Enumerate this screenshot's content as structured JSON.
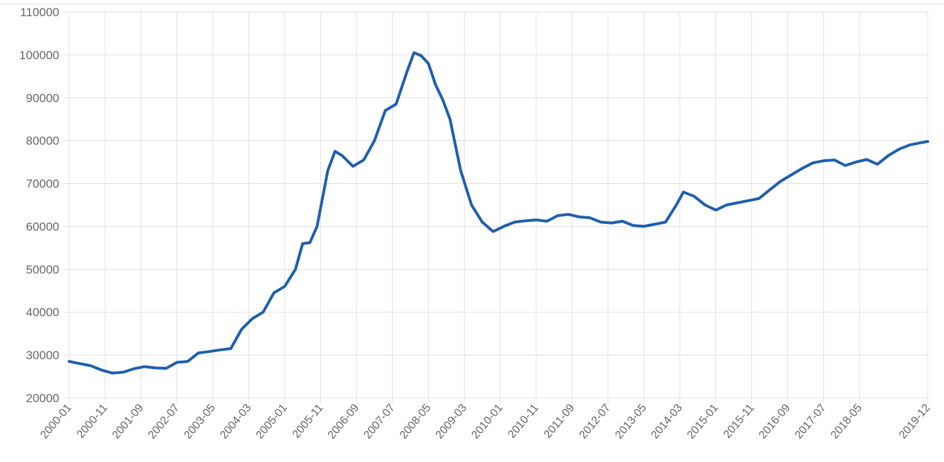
{
  "chart_data": {
    "type": "line",
    "title": "",
    "xlabel": "",
    "ylabel": "",
    "ylim": [
      20000,
      110000
    ],
    "yticks": [
      "20000",
      "30000",
      "40000",
      "50000",
      "60000",
      "70000",
      "80000",
      "90000",
      "100000",
      "110000"
    ],
    "xticks": [
      "2000-01",
      "2000-11",
      "2001-09",
      "2002-07",
      "2003-05",
      "2004-03",
      "2005-01",
      "2005-11",
      "2006-09",
      "2007-07",
      "2008-05",
      "2009-03",
      "2010-01",
      "2010-11",
      "2011-09",
      "2012-07",
      "2013-05",
      "2014-03",
      "2015-01",
      "2015-11",
      "2016-09",
      "2017-07",
      "2018-05",
      "2019-12"
    ],
    "grid": true,
    "legend": "none",
    "series_color": "#1f5fad",
    "grid_color": "#e1e1e1",
    "x": [
      "2000-01",
      "2000-04",
      "2000-07",
      "2000-10",
      "2001-01",
      "2001-04",
      "2001-07",
      "2001-10",
      "2002-01",
      "2002-04",
      "2002-07",
      "2002-10",
      "2003-01",
      "2003-04",
      "2003-07",
      "2003-10",
      "2004-01",
      "2004-04",
      "2004-07",
      "2004-10",
      "2005-01",
      "2005-04",
      "2005-06",
      "2005-08",
      "2005-10",
      "2006-01",
      "2006-03",
      "2006-05",
      "2006-08",
      "2006-11",
      "2007-02",
      "2007-05",
      "2007-08",
      "2007-11",
      "2008-01",
      "2008-03",
      "2008-05",
      "2008-07",
      "2008-09",
      "2008-11",
      "2009-02",
      "2009-05",
      "2009-08",
      "2009-11",
      "2010-02",
      "2010-05",
      "2010-08",
      "2010-11",
      "2011-02",
      "2011-05",
      "2011-08",
      "2011-11",
      "2012-02",
      "2012-05",
      "2012-08",
      "2012-11",
      "2013-02",
      "2013-05",
      "2013-08",
      "2013-11",
      "2014-02",
      "2014-04",
      "2014-07",
      "2014-10",
      "2015-01",
      "2015-04",
      "2015-07",
      "2015-10",
      "2016-01",
      "2016-04",
      "2016-07",
      "2016-10",
      "2017-01",
      "2017-04",
      "2017-07",
      "2017-10",
      "2018-01",
      "2018-04",
      "2018-07",
      "2018-10",
      "2019-01",
      "2019-04",
      "2019-07",
      "2019-10",
      "2019-12"
    ],
    "series": [
      {
        "values": [
          28500,
          28000,
          27500,
          26500,
          25800,
          26000,
          26800,
          27300,
          27000,
          26900,
          28300,
          28500,
          30500,
          30800,
          31200,
          31500,
          36000,
          38500,
          40000,
          44500,
          46000,
          50000,
          56000,
          56200,
          60000,
          73000,
          77500,
          76500,
          74000,
          75500,
          80000,
          87000,
          88500,
          96000,
          100500,
          99800,
          98000,
          93000,
          89500,
          85000,
          73000,
          65000,
          61000,
          58800,
          60000,
          61000,
          61300,
          61500,
          61200,
          62500,
          62800,
          62200,
          62000,
          61000,
          60800,
          61200,
          60200,
          60000,
          60500,
          61000,
          65000,
          68000,
          67000,
          65000,
          63800,
          65000,
          65500,
          66000,
          66500,
          68500,
          70500,
          72000,
          73500,
          74800,
          75300,
          75500,
          74200,
          75000,
          75600,
          74500,
          76500,
          78000,
          79000,
          79500,
          79800
        ]
      }
    ]
  }
}
